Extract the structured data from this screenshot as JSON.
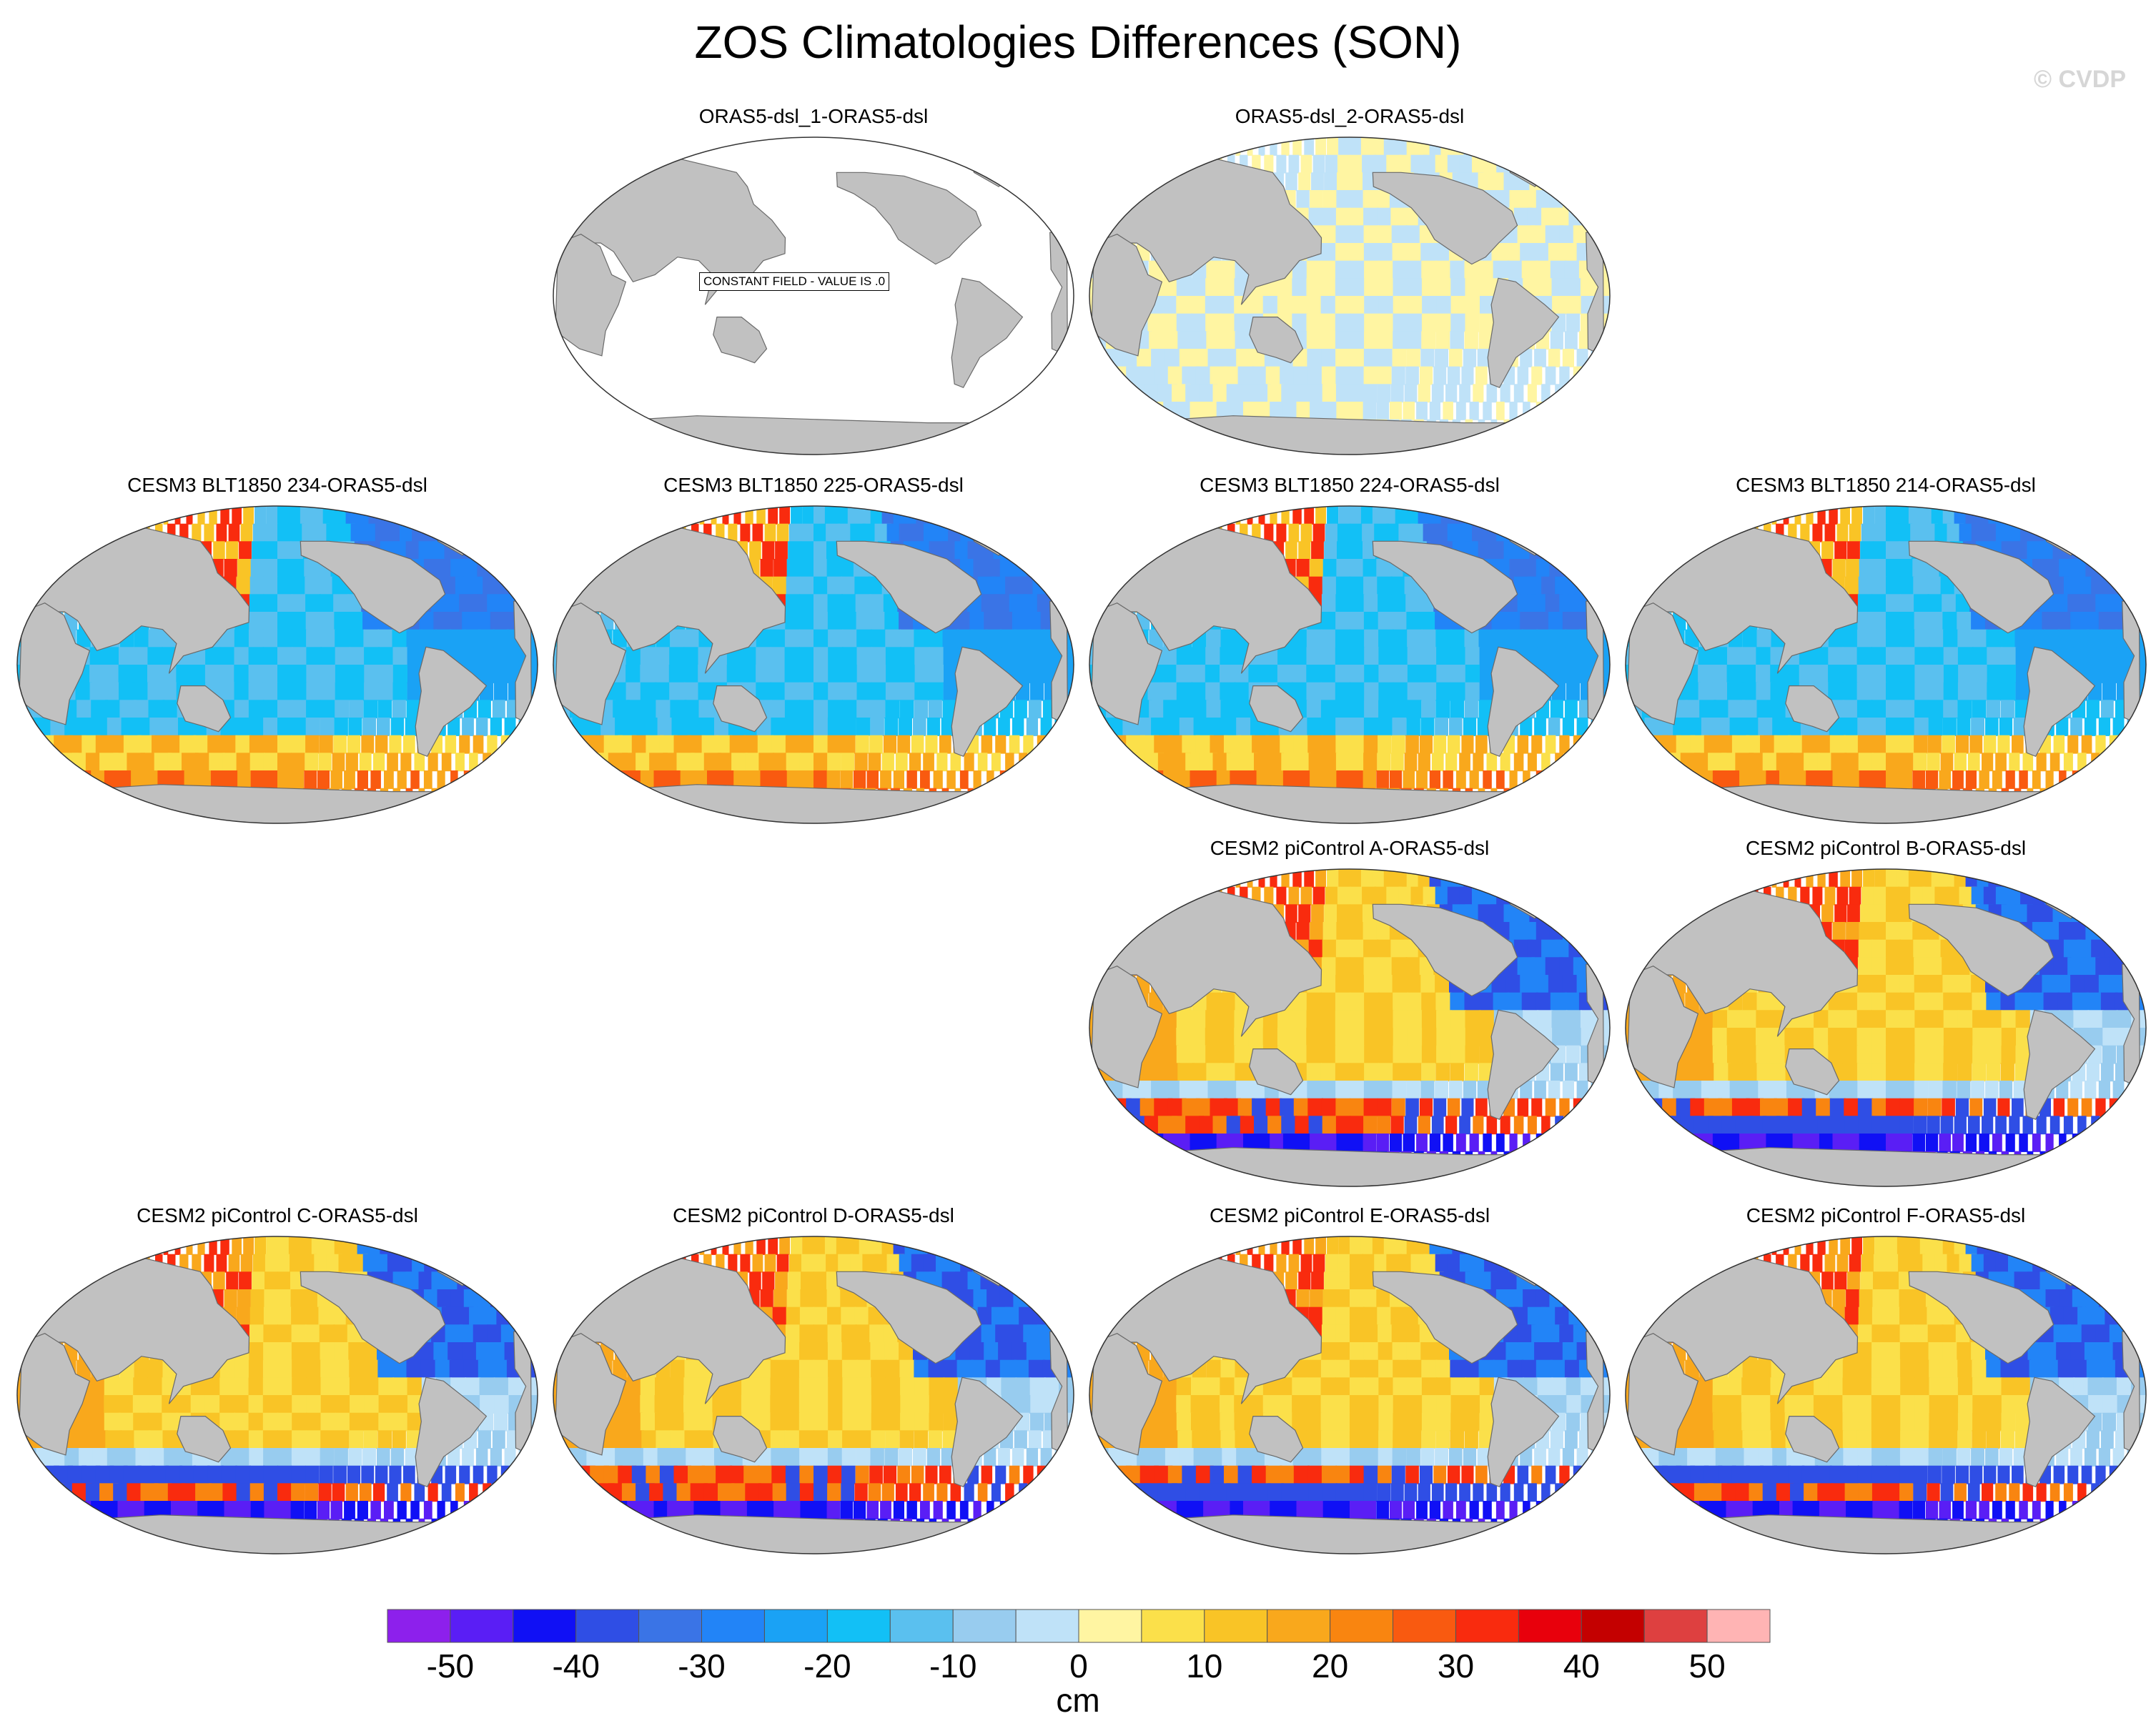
{
  "title": "ZOS Climatologies Differences (SON)",
  "watermark": "© CVDP",
  "colors": {
    "land": "#c1c1c1",
    "ocean_blank": "#ffffff",
    "colorbar": [
      "#8d20ec",
      "#5a1ef5",
      "#1010f5",
      "#2f4ee5",
      "#3a74e6",
      "#2284f7",
      "#1aa2f5",
      "#12c0f6",
      "#5ac0ef",
      "#98ccef",
      "#bfe2f8",
      "#fff5a2",
      "#fbe04a",
      "#f9c426",
      "#f9a81c",
      "#f98510",
      "#f95a10",
      "#f92b0e",
      "#e8000c",
      "#c40000",
      "#de4040",
      "#ffb4b4"
    ]
  },
  "chart_data": {
    "type": "map-panel-grid",
    "title": "ZOS Climatologies Differences (SON)",
    "projection": "Robinson, Pacific-centered",
    "colorbar": {
      "unit": "cm",
      "ticks": [
        "-50",
        "-40",
        "-30",
        "-20",
        "-10",
        "0",
        "10",
        "20",
        "30",
        "40",
        "50"
      ],
      "range": [
        -55,
        55
      ],
      "interval": 5
    },
    "panels": [
      {
        "label": "ORAS5-dsl_1-ORAS5-dsl",
        "pattern": "zero",
        "constant_note": "CONSTANT FIELD - VALUE IS .0"
      },
      {
        "label": "ORAS5-dsl_2-ORAS5-dsl",
        "pattern": "near-zero"
      },
      {
        "label": "CESM3 BLT1850 234-ORAS5-dsl",
        "pattern": "cesm3"
      },
      {
        "label": "CESM3 BLT1850 225-ORAS5-dsl",
        "pattern": "cesm3"
      },
      {
        "label": "CESM3 BLT1850 224-ORAS5-dsl",
        "pattern": "cesm3"
      },
      {
        "label": "CESM3 BLT1850 214-ORAS5-dsl",
        "pattern": "cesm3"
      },
      {
        "label": "CESM2 piControl A-ORAS5-dsl",
        "pattern": "cesm2"
      },
      {
        "label": "CESM2 piControl B-ORAS5-dsl",
        "pattern": "cesm2"
      },
      {
        "label": "CESM2 piControl C-ORAS5-dsl",
        "pattern": "cesm2"
      },
      {
        "label": "CESM2 piControl D-ORAS5-dsl",
        "pattern": "cesm2"
      },
      {
        "label": "CESM2 piControl E-ORAS5-dsl",
        "pattern": "cesm2"
      },
      {
        "label": "CESM2 piControl F-ORAS5-dsl",
        "pattern": "cesm2"
      }
    ]
  }
}
